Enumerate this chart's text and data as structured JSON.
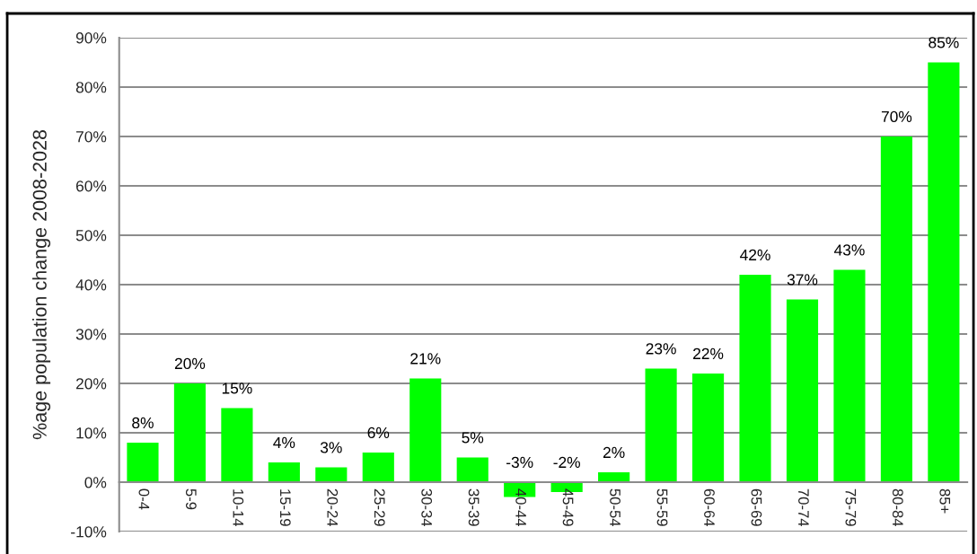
{
  "chart_data": {
    "type": "bar",
    "ylabel": "%age population change 2008-2028",
    "categories": [
      "0-4",
      "5-9",
      "10-14",
      "15-19",
      "20-24",
      "25-29",
      "30-34",
      "35-39",
      "40-44",
      "45-49",
      "50-54",
      "55-59",
      "60-64",
      "65-69",
      "70-74",
      "75-79",
      "80-84",
      "85+"
    ],
    "values": [
      8,
      20,
      15,
      4,
      3,
      6,
      21,
      5,
      -3,
      -2,
      2,
      23,
      22,
      42,
      37,
      43,
      70,
      85
    ],
    "value_labels": [
      "8%",
      "20%",
      "15%",
      "4%",
      "3%",
      "6%",
      "21%",
      "5%",
      "-3%",
      "-2%",
      "2%",
      "23%",
      "22%",
      "42%",
      "37%",
      "43%",
      "70%",
      "85%"
    ],
    "color": "#00ff00",
    "ylim": [
      -10,
      90
    ],
    "yticks": [
      {
        "value": -10,
        "label": "-10%"
      },
      {
        "value": 0,
        "label": "0%"
      },
      {
        "value": 10,
        "label": "10%"
      },
      {
        "value": 20,
        "label": "20%"
      },
      {
        "value": 30,
        "label": "30%"
      },
      {
        "value": 40,
        "label": "40%"
      },
      {
        "value": 50,
        "label": "50%"
      },
      {
        "value": 60,
        "label": "60%"
      },
      {
        "value": 70,
        "label": "70%"
      },
      {
        "value": 80,
        "label": "80%"
      },
      {
        "value": 90,
        "label": "90%"
      }
    ],
    "grid": "y"
  }
}
